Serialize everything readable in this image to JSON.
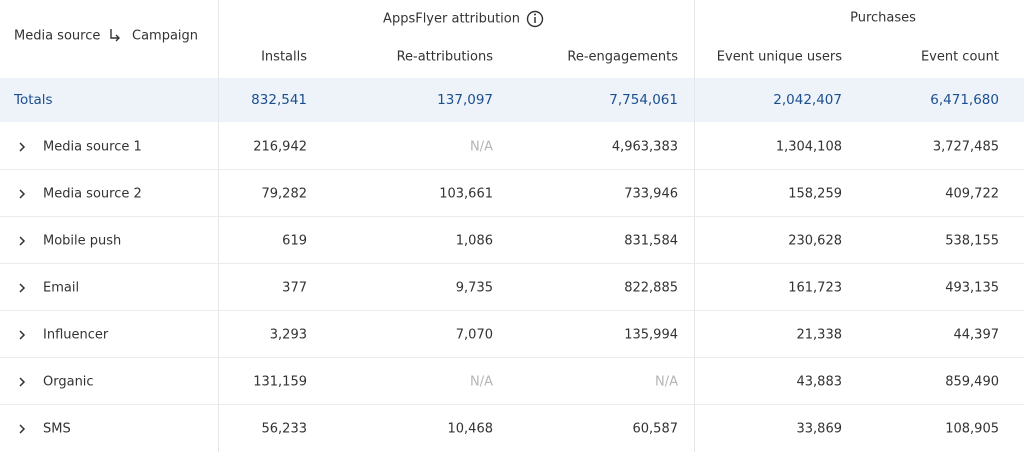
{
  "header": {
    "first": {
      "media_source": "Media source",
      "campaign": "Campaign"
    },
    "groups": [
      "AppsFlyer attribution",
      "Purchases"
    ],
    "columns": [
      "Installs",
      "Re-attributions",
      "Re-engagements",
      "Event unique users",
      "Event count"
    ]
  },
  "totals": {
    "label": "Totals",
    "values": [
      "832,541",
      "137,097",
      "7,754,061",
      "2,042,407",
      "6,471,680"
    ]
  },
  "rows": [
    {
      "label": "Media source 1",
      "values": [
        "216,942",
        "N/A",
        "4,963,383",
        "1,304,108",
        "3,727,485"
      ]
    },
    {
      "label": "Media source 2",
      "values": [
        "79,282",
        "103,661",
        "733,946",
        "158,259",
        "409,722"
      ]
    },
    {
      "label": "Mobile push",
      "values": [
        "619",
        "1,086",
        "831,584",
        "230,628",
        "538,155"
      ]
    },
    {
      "label": "Email",
      "values": [
        "377",
        "9,735",
        "822,885",
        "161,723",
        "493,135"
      ]
    },
    {
      "label": "Influencer",
      "values": [
        "3,293",
        "7,070",
        "135,994",
        "21,338",
        "44,397"
      ]
    },
    {
      "label": "Organic",
      "values": [
        "131,159",
        "N/A",
        "N/A",
        "43,883",
        "859,490"
      ]
    },
    {
      "label": "SMS",
      "values": [
        "56,233",
        "10,468",
        "60,587",
        "33,869",
        "108,905"
      ]
    }
  ]
}
